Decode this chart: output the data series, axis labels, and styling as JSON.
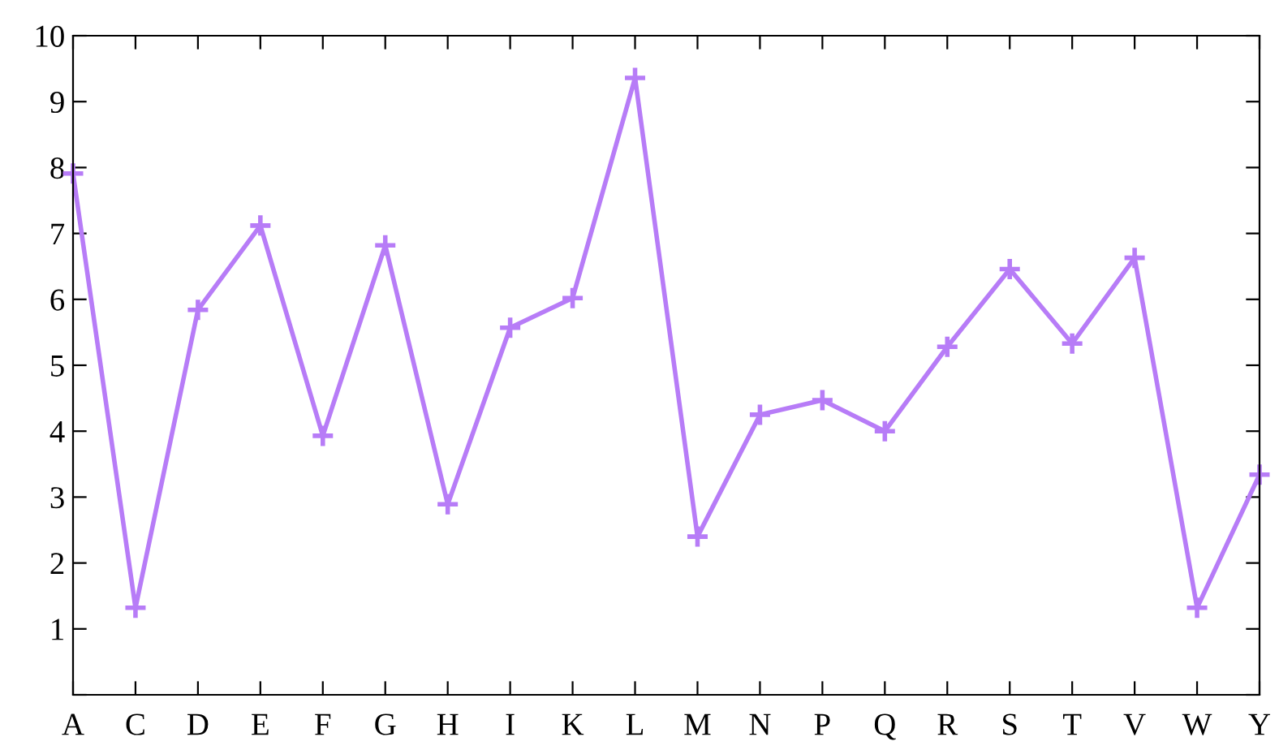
{
  "chart_data": {
    "type": "line",
    "categories": [
      "A",
      "C",
      "D",
      "E",
      "F",
      "G",
      "H",
      "I",
      "K",
      "L",
      "M",
      "N",
      "P",
      "Q",
      "R",
      "S",
      "T",
      "V",
      "W",
      "Y"
    ],
    "series": [
      {
        "color": "#b77cf7",
        "values": [
          7.91,
          1.32,
          5.84,
          7.12,
          3.93,
          6.82,
          2.89,
          5.57,
          6.02,
          9.36,
          2.4,
          4.25,
          4.47,
          4.0,
          5.28,
          6.46,
          5.33,
          6.63,
          1.32,
          3.34
        ]
      }
    ],
    "ylim": [
      0,
      10
    ],
    "yticks": [
      {
        "value": 0,
        "label": null
      },
      1,
      2,
      3,
      4,
      5,
      6,
      7,
      8,
      9,
      10
    ],
    "marker": "cross",
    "line_style": "solid",
    "grid": false,
    "legend": false
  }
}
